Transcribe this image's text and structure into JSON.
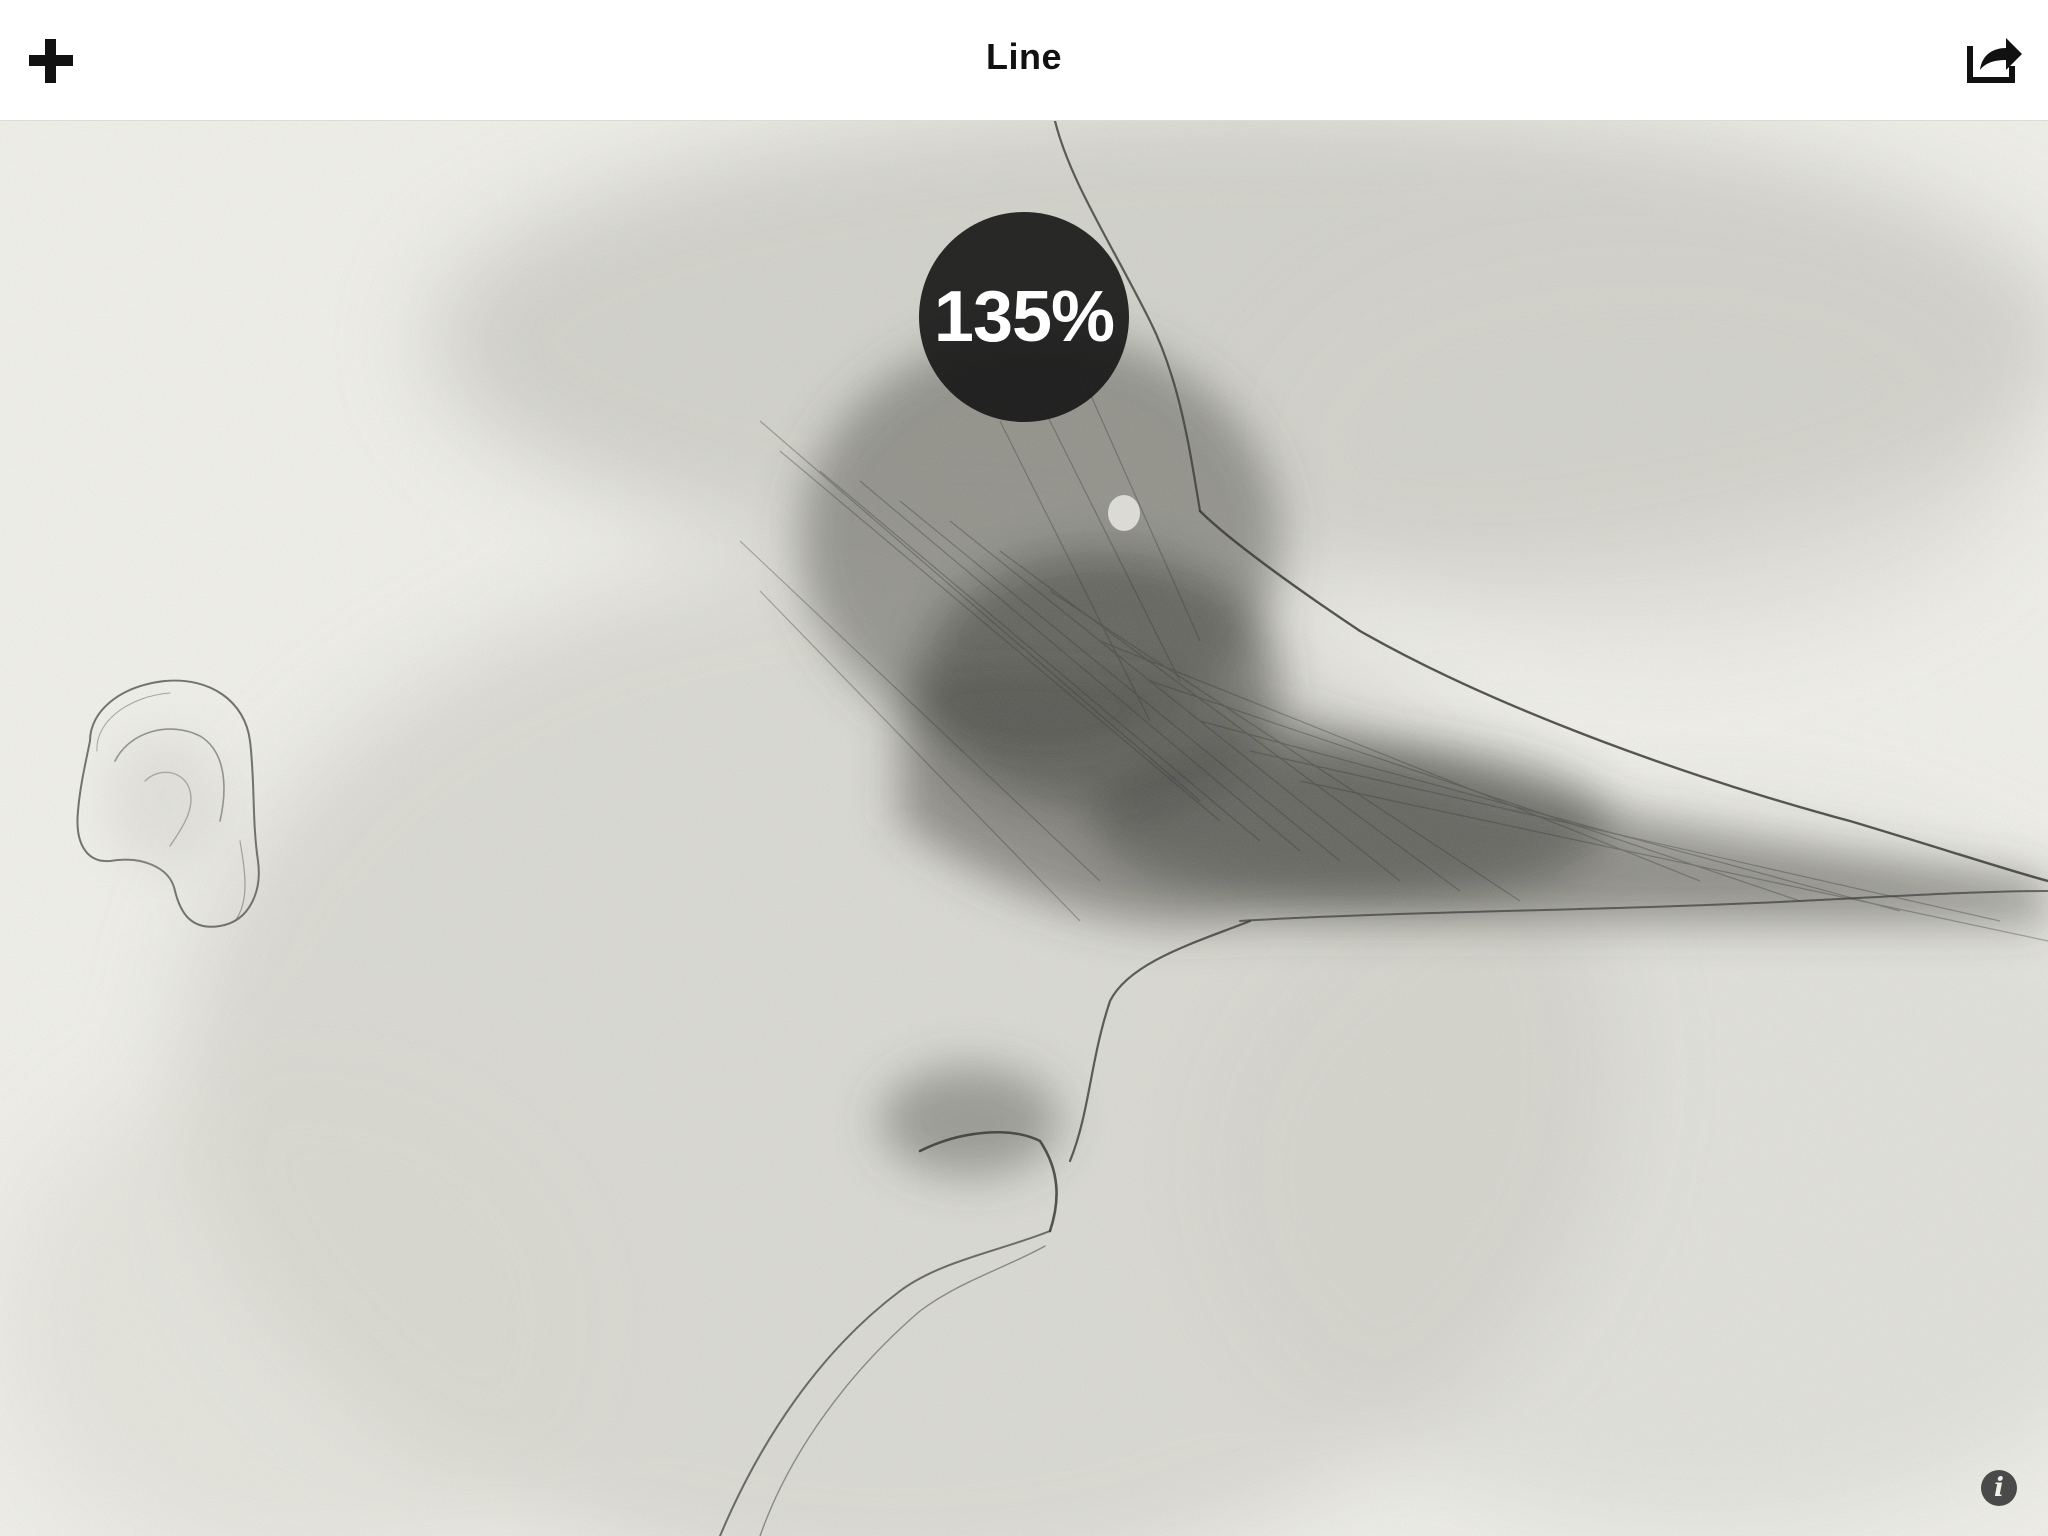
{
  "toolbar": {
    "title": "Line",
    "left_icon": "plus-icon",
    "right_icon": "share-icon"
  },
  "canvas": {
    "zoom_label": "135%",
    "subject": "pencil-sketch",
    "background_color": "#f1f1ea",
    "ink_color": "#1e1e1e"
  },
  "info": {
    "glyph": "i",
    "icon": "info-icon"
  }
}
